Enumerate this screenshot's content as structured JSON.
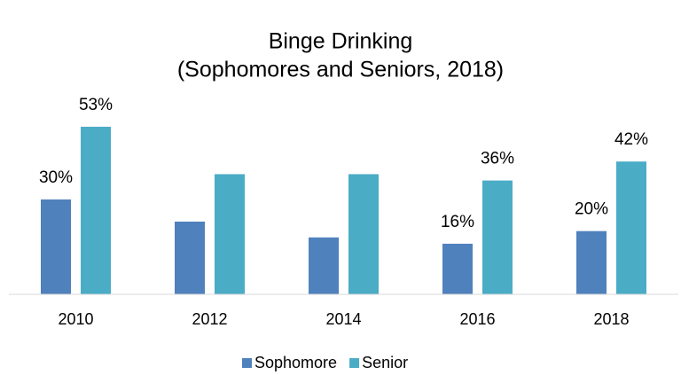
{
  "chart_data": {
    "type": "bar",
    "title": "Binge Drinking",
    "subtitle": "(Sophomores and Seniors, 2018)",
    "categories": [
      "2010",
      "2012",
      "2014",
      "2016",
      "2018"
    ],
    "series": [
      {
        "name": "Sophomore",
        "color": "#4f81bd",
        "values": [
          30,
          23,
          18,
          16,
          20
        ],
        "value_labels": [
          "30%",
          null,
          null,
          "16%",
          "20%"
        ]
      },
      {
        "name": "Senior",
        "color": "#4bacc6",
        "values": [
          53,
          38,
          38,
          36,
          42
        ],
        "value_labels": [
          "53%",
          null,
          null,
          "36%",
          "42%"
        ]
      }
    ],
    "ylim": [
      0,
      60
    ],
    "legend": "bottom"
  }
}
